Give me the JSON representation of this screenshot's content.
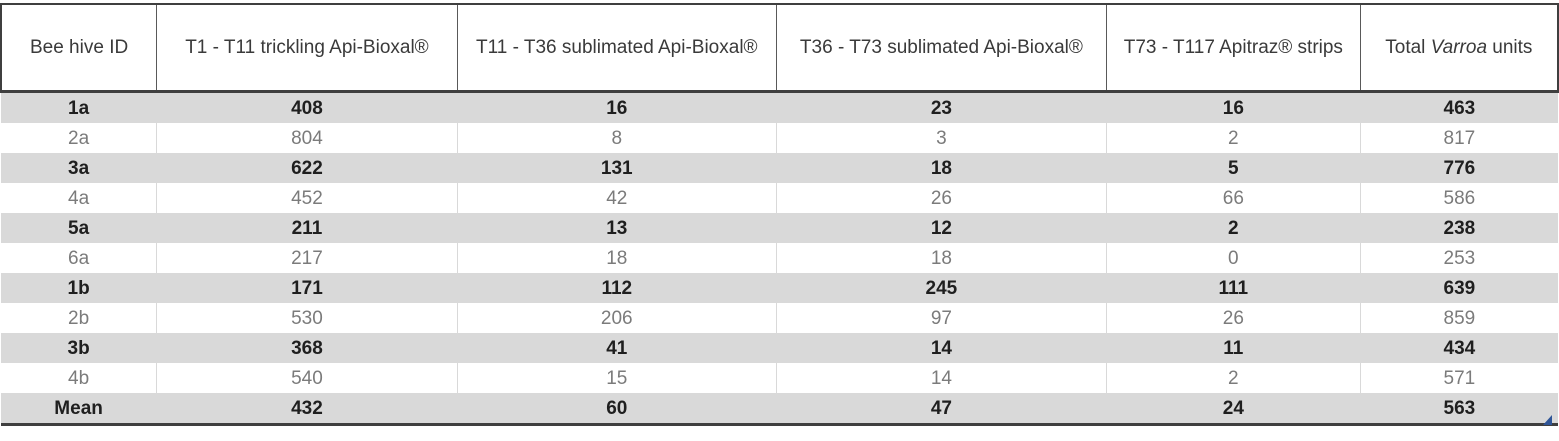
{
  "chart_data": {
    "type": "table",
    "columns": [
      {
        "label": "Bee hive ID"
      },
      {
        "label": "T1 - T11 trickling Api-Bioxal®"
      },
      {
        "label": "T11 - T36 sublimated Api-Bioxal®"
      },
      {
        "label": "T36 - T73 sublimated Api-Bioxal®"
      },
      {
        "label": "T73 - T117 Apitraz® strips"
      },
      {
        "label": "Total Varroa units",
        "parts": {
          "prefix": "Total ",
          "italic": "Varroa",
          "suffix": " units"
        }
      }
    ],
    "rows": [
      {
        "id": "1a",
        "values": [
          408,
          16,
          23,
          16,
          463
        ],
        "shaded": true
      },
      {
        "id": "2a",
        "values": [
          804,
          8,
          3,
          2,
          817
        ],
        "shaded": false
      },
      {
        "id": "3a",
        "values": [
          622,
          131,
          18,
          5,
          776
        ],
        "shaded": true
      },
      {
        "id": "4a",
        "values": [
          452,
          42,
          26,
          66,
          586
        ],
        "shaded": false
      },
      {
        "id": "5a",
        "values": [
          211,
          13,
          12,
          2,
          238
        ],
        "shaded": true
      },
      {
        "id": "6a",
        "values": [
          217,
          18,
          18,
          0,
          253
        ],
        "shaded": false
      },
      {
        "id": "1b",
        "values": [
          171,
          112,
          245,
          111,
          639
        ],
        "shaded": true
      },
      {
        "id": "2b",
        "values": [
          530,
          206,
          97,
          26,
          859
        ],
        "shaded": false
      },
      {
        "id": "3b",
        "values": [
          368,
          41,
          14,
          11,
          434
        ],
        "shaded": true
      },
      {
        "id": "4b",
        "values": [
          540,
          15,
          14,
          2,
          571
        ],
        "shaded": false
      },
      {
        "id": "Mean",
        "values": [
          432,
          60,
          47,
          24,
          563
        ],
        "shaded": true,
        "is_summary": true
      }
    ]
  },
  "colors": {
    "shaded_row_bg": "#d9d9d9",
    "white_row_bg": "#ffffff",
    "shaded_text": "#1f1f1f",
    "muted_text": "#7b7b7b",
    "header_text": "#3a3a3a",
    "dark_border": "#3f3f3f",
    "light_border": "#d9d9d9",
    "resize_handle_blue": "#2f5597"
  },
  "icons": {
    "resize_handle": "table-resize-handle-icon"
  }
}
